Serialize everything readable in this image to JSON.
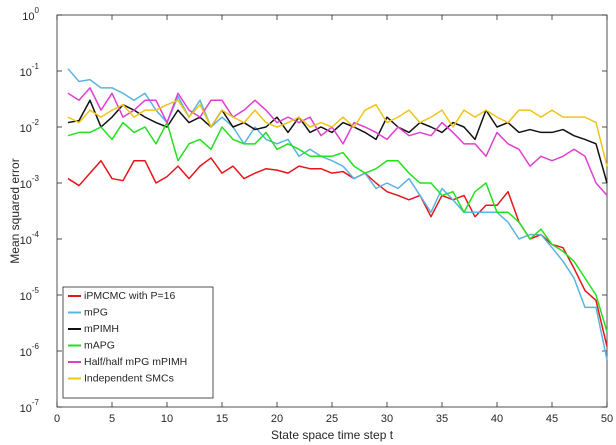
{
  "chart_data": {
    "type": "line",
    "y_scale": "log",
    "x_label": "State space time step t",
    "y_label": "Mean squared error",
    "xlim": [
      0,
      50
    ],
    "xticks": [
      0,
      5,
      10,
      15,
      20,
      25,
      30,
      35,
      40,
      45,
      50
    ],
    "ylim": [
      1e-07,
      1
    ],
    "yticks": [
      {
        "value": 1e-07,
        "label": "10",
        "exponent": "-7"
      },
      {
        "value": 1e-06,
        "label": "10",
        "exponent": "-6"
      },
      {
        "value": 1e-05,
        "label": "10",
        "exponent": "-5"
      },
      {
        "value": 0.0001,
        "label": "10",
        "exponent": "-4"
      },
      {
        "value": 0.001,
        "label": "10",
        "exponent": "-3"
      },
      {
        "value": 0.01,
        "label": "10",
        "exponent": "-2"
      },
      {
        "value": 0.1,
        "label": "10",
        "exponent": "-1"
      },
      {
        "value": 1,
        "label": "10",
        "exponent": "0"
      }
    ],
    "legend": "lower left",
    "x": [
      1,
      2,
      3,
      4,
      5,
      6,
      7,
      8,
      9,
      10,
      11,
      12,
      13,
      14,
      15,
      16,
      17,
      18,
      19,
      20,
      21,
      22,
      23,
      24,
      25,
      26,
      27,
      28,
      29,
      30,
      31,
      32,
      33,
      34,
      35,
      36,
      37,
      38,
      39,
      40,
      41,
      42,
      43,
      44,
      45,
      46,
      47,
      48,
      49,
      50
    ],
    "series": [
      {
        "name": "iPMCMC with P=16",
        "color": "#e8141b",
        "values": [
          0.0012,
          0.0009,
          0.0015,
          0.0025,
          0.0012,
          0.0011,
          0.0025,
          0.0025,
          0.001,
          0.0013,
          0.002,
          0.0012,
          0.002,
          0.0028,
          0.0015,
          0.002,
          0.0012,
          0.0015,
          0.0018,
          0.0017,
          0.0015,
          0.002,
          0.0018,
          0.0018,
          0.0015,
          0.0016,
          0.0012,
          0.0015,
          0.001,
          0.0007,
          0.0006,
          0.0005,
          0.0006,
          0.00025,
          0.0006,
          0.0005,
          0.0006,
          0.00025,
          0.0004,
          0.0004,
          0.0007,
          0.0002,
          0.0001,
          0.00012,
          8e-05,
          7e-05,
          3e-05,
          1.2e-05,
          8e-06,
          1.2e-06
        ]
      },
      {
        "name": "mPG",
        "color": "#5ab4e0",
        "values": [
          0.11,
          0.065,
          0.07,
          0.05,
          0.05,
          0.04,
          0.03,
          0.04,
          0.02,
          0.012,
          0.035,
          0.015,
          0.03,
          0.01,
          0.015,
          0.01,
          0.005,
          0.01,
          0.006,
          0.005,
          0.006,
          0.003,
          0.004,
          0.003,
          0.0025,
          0.002,
          0.0012,
          0.0015,
          0.0008,
          0.001,
          0.0008,
          0.0012,
          0.0006,
          0.0003,
          0.0008,
          0.0005,
          0.0003,
          0.0003,
          0.0003,
          0.0003,
          0.0002,
          0.0001,
          0.00012,
          0.00012,
          7e-05,
          4e-05,
          2e-05,
          6e-06,
          6e-06,
          7e-07
        ]
      },
      {
        "name": "mPIMH",
        "color": "#111111",
        "values": [
          0.012,
          0.013,
          0.03,
          0.01,
          0.015,
          0.025,
          0.02,
          0.015,
          0.012,
          0.01,
          0.02,
          0.012,
          0.015,
          0.01,
          0.02,
          0.01,
          0.012,
          0.009,
          0.01,
          0.015,
          0.008,
          0.015,
          0.008,
          0.01,
          0.008,
          0.012,
          0.01,
          0.008,
          0.006,
          0.015,
          0.01,
          0.008,
          0.012,
          0.01,
          0.008,
          0.012,
          0.01,
          0.006,
          0.02,
          0.01,
          0.012,
          0.008,
          0.009,
          0.008,
          0.008,
          0.009,
          0.007,
          0.006,
          0.005,
          0.001
        ]
      },
      {
        "name": "mAPG",
        "color": "#22e01e",
        "values": [
          0.007,
          0.008,
          0.008,
          0.01,
          0.006,
          0.012,
          0.008,
          0.01,
          0.005,
          0.012,
          0.0025,
          0.005,
          0.006,
          0.004,
          0.01,
          0.006,
          0.005,
          0.005,
          0.008,
          0.004,
          0.005,
          0.004,
          0.003,
          0.003,
          0.003,
          0.0035,
          0.002,
          0.0015,
          0.0018,
          0.0025,
          0.0025,
          0.0015,
          0.001,
          0.001,
          0.0006,
          0.0007,
          0.0003,
          0.0007,
          0.001,
          0.0003,
          0.0003,
          0.0002,
          0.0001,
          0.00015,
          8e-05,
          6e-05,
          4e-05,
          2e-05,
          1e-05,
          2.2e-06
        ]
      },
      {
        "name": "Half/half mPG mPIMH",
        "color": "#e13fcf",
        "values": [
          0.04,
          0.03,
          0.05,
          0.02,
          0.04,
          0.015,
          0.02,
          0.03,
          0.03,
          0.012,
          0.04,
          0.02,
          0.015,
          0.03,
          0.03,
          0.015,
          0.02,
          0.03,
          0.02,
          0.012,
          0.015,
          0.012,
          0.015,
          0.007,
          0.01,
          0.005,
          0.012,
          0.01,
          0.008,
          0.006,
          0.01,
          0.007,
          0.008,
          0.007,
          0.012,
          0.008,
          0.005,
          0.005,
          0.003,
          0.008,
          0.005,
          0.004,
          0.002,
          0.003,
          0.0025,
          0.003,
          0.004,
          0.003,
          0.001,
          0.0006
        ]
      },
      {
        "name": "Independent SMCs",
        "color": "#f0c417",
        "values": [
          0.015,
          0.012,
          0.02,
          0.015,
          0.02,
          0.025,
          0.015,
          0.02,
          0.02,
          0.025,
          0.03,
          0.015,
          0.025,
          0.01,
          0.02,
          0.015,
          0.012,
          0.02,
          0.012,
          0.01,
          0.012,
          0.015,
          0.01,
          0.012,
          0.01,
          0.015,
          0.01,
          0.02,
          0.025,
          0.012,
          0.015,
          0.02,
          0.012,
          0.015,
          0.02,
          0.01,
          0.02,
          0.015,
          0.02,
          0.015,
          0.012,
          0.02,
          0.02,
          0.015,
          0.02,
          0.015,
          0.015,
          0.015,
          0.012,
          0.002
        ]
      }
    ]
  }
}
